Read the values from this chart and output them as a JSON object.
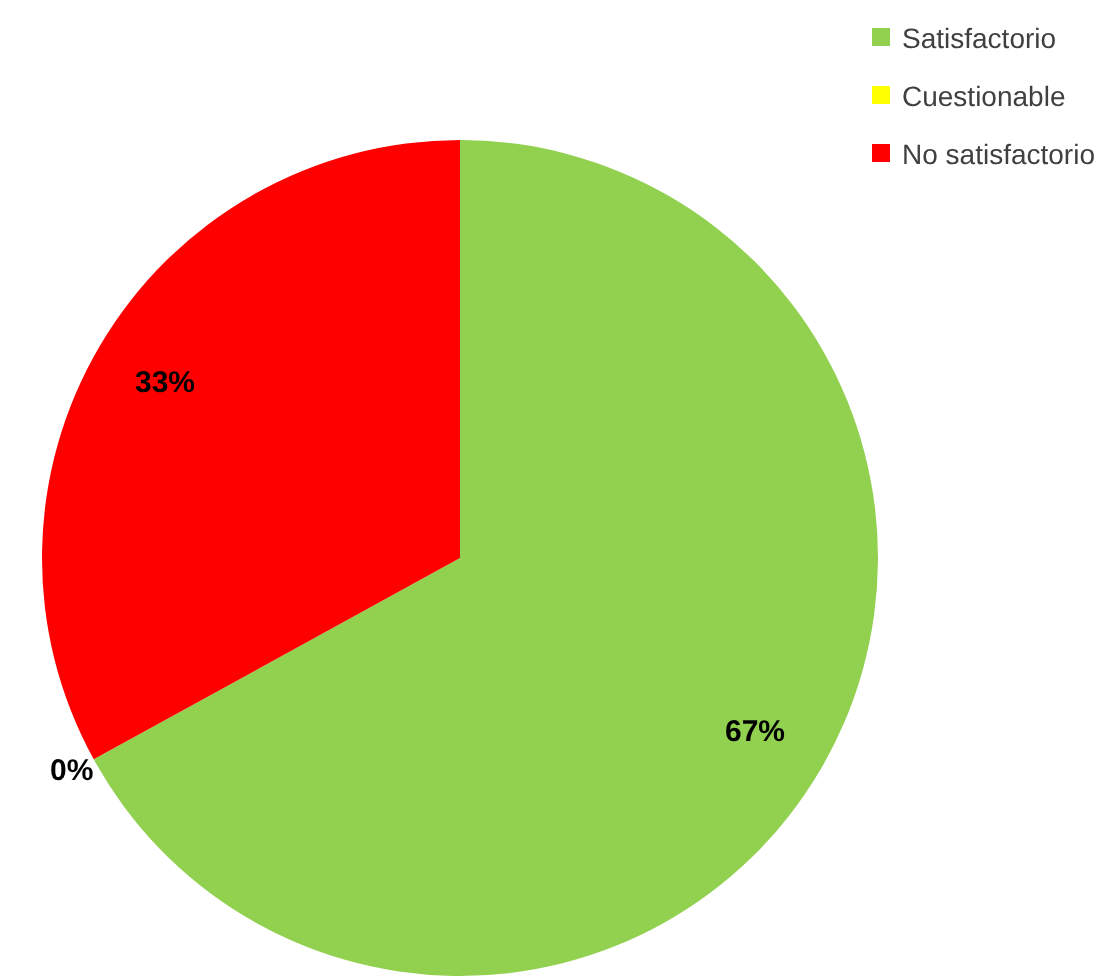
{
  "chart_data": {
    "type": "pie",
    "categories": [
      "Satisfactorio",
      "Cuestionable",
      "No satisfactorio"
    ],
    "values": [
      67,
      0,
      33
    ],
    "value_labels": [
      "67%",
      "0%",
      "33%"
    ],
    "colors": [
      "#92d050",
      "#ffff00",
      "#ff0000"
    ],
    "legend": "top right"
  }
}
